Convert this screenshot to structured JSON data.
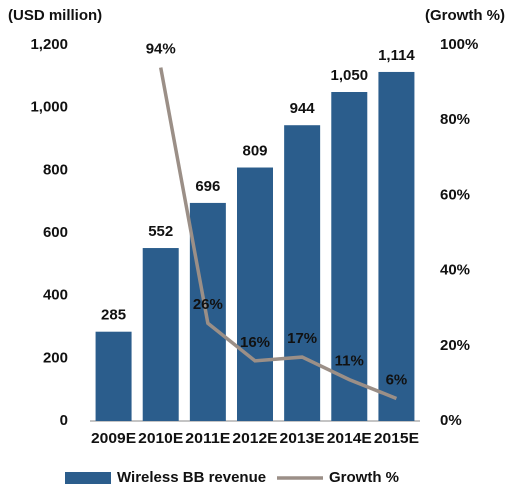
{
  "chart_data": {
    "type": "bar_line",
    "y_label": "(USD million)",
    "y2_label": "(Growth %)",
    "categories": [
      "2009E",
      "2010E",
      "2011E",
      "2012E",
      "2013E",
      "2014E",
      "2015E"
    ],
    "series": [
      {
        "name": "Wireless BB revenue",
        "type": "bar",
        "color": "#2b5d8c",
        "values": [
          285,
          552,
          696,
          809,
          944,
          1050,
          1114
        ],
        "value_labels": [
          "285",
          "552",
          "696",
          "809",
          "944",
          "1,050",
          "1,114"
        ]
      },
      {
        "name": "Growth %",
        "type": "line",
        "axis": "y2",
        "color": "#9b8f87",
        "values": [
          null,
          94,
          26,
          16,
          17,
          11,
          6
        ],
        "value_labels": [
          null,
          "94%",
          "26%",
          "16%",
          "17%",
          "11%",
          "6%"
        ]
      }
    ],
    "ylim": [
      0,
      1200
    ],
    "yticks": [
      0,
      200,
      400,
      600,
      800,
      {
        "value": 1000,
        "label": "1,000"
      },
      {
        "value": 1200,
        "label": "1,200"
      }
    ],
    "y2lim": [
      0,
      100
    ],
    "y2ticks": [
      {
        "value": 0,
        "label": "0%"
      },
      {
        "value": 20,
        "label": "20%"
      },
      {
        "value": 40,
        "label": "40%"
      },
      {
        "value": 60,
        "label": "60%"
      },
      {
        "value": 80,
        "label": "80%"
      },
      {
        "value": 100,
        "label": "100%"
      }
    ]
  }
}
